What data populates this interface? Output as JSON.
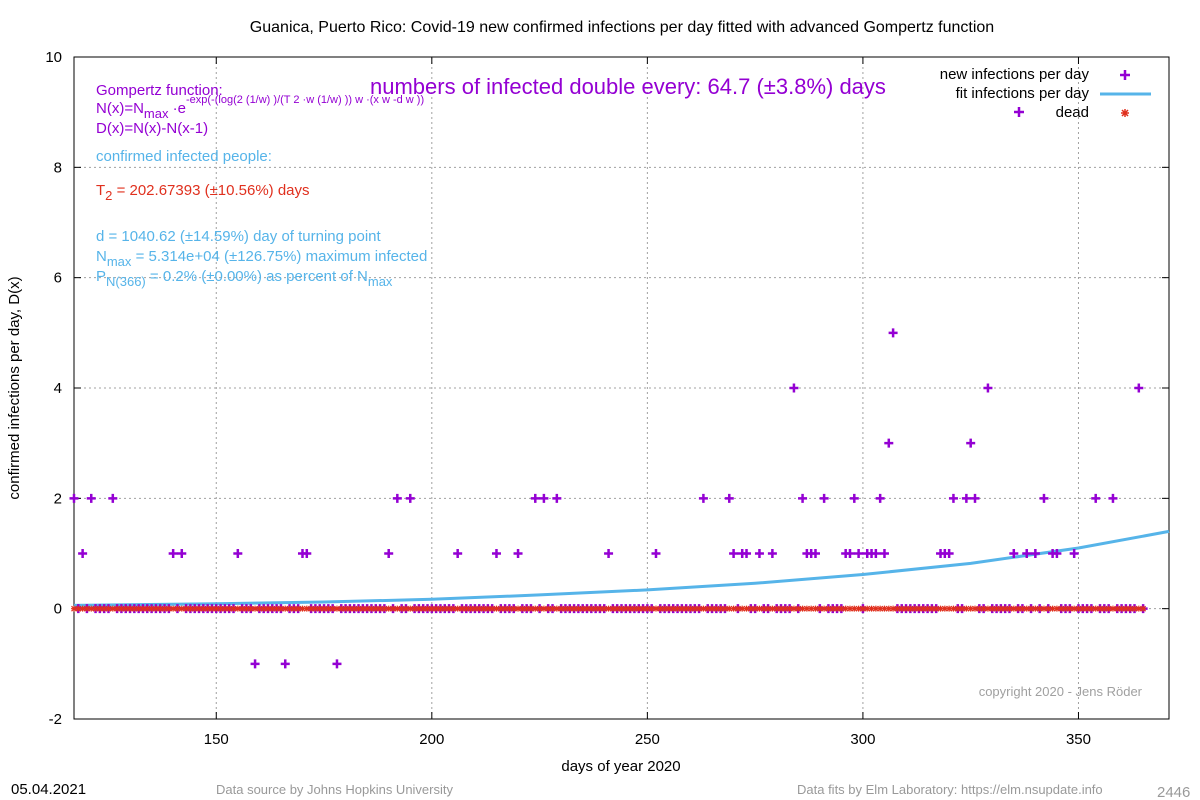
{
  "colors": {
    "infections": "#9400d3",
    "fit": "#56b4e9",
    "dead": "#e0301e",
    "grid": "#a0a0a0",
    "text": "#000000",
    "footer": "#999999",
    "copyright": "#a0a0a0"
  },
  "chart_data": {
    "type": "scatter",
    "title": "Guanica,  Puerto Rico: Covid-19 new confirmed infections per day fitted with advanced Gompertz function",
    "xlabel": "days of year 2020",
    "ylabel": "confirmed infections per day, D(x)",
    "xlim": [
      117,
      371
    ],
    "ylim": [
      -2,
      10
    ],
    "x_ticks": [
      150,
      200,
      250,
      300,
      350
    ],
    "y_ticks": [
      -2,
      0,
      2,
      4,
      6,
      8,
      10
    ],
    "grid": true,
    "legend_position": "top-right",
    "series": [
      {
        "name": "new infections per day",
        "kind": "points",
        "zero_days_from": 117,
        "zero_days_to": 365,
        "points": [
          [
            117,
            2
          ],
          [
            119,
            1
          ],
          [
            121,
            2
          ],
          [
            126,
            2
          ],
          [
            140,
            1
          ],
          [
            142,
            1
          ],
          [
            155,
            1
          ],
          [
            159,
            -1
          ],
          [
            166,
            -1
          ],
          [
            170,
            1
          ],
          [
            171,
            1
          ],
          [
            178,
            -1
          ],
          [
            190,
            1
          ],
          [
            192,
            2
          ],
          [
            195,
            2
          ],
          [
            206,
            1
          ],
          [
            215,
            1
          ],
          [
            220,
            1
          ],
          [
            224,
            2
          ],
          [
            226,
            2
          ],
          [
            229,
            2
          ],
          [
            241,
            1
          ],
          [
            252,
            1
          ],
          [
            263,
            2
          ],
          [
            269,
            2
          ],
          [
            270,
            1
          ],
          [
            272,
            1
          ],
          [
            273,
            1
          ],
          [
            276,
            1
          ],
          [
            279,
            1
          ],
          [
            284,
            4
          ],
          [
            286,
            2
          ],
          [
            287,
            1
          ],
          [
            288,
            1
          ],
          [
            289,
            1
          ],
          [
            291,
            2
          ],
          [
            296,
            1
          ],
          [
            297,
            1
          ],
          [
            298,
            2
          ],
          [
            299,
            1
          ],
          [
            301,
            1
          ],
          [
            302,
            1
          ],
          [
            303,
            1
          ],
          [
            304,
            2
          ],
          [
            305,
            1
          ],
          [
            306,
            3
          ],
          [
            307,
            5
          ],
          [
            318,
            1
          ],
          [
            319,
            1
          ],
          [
            320,
            1
          ],
          [
            321,
            2
          ],
          [
            324,
            2
          ],
          [
            325,
            3
          ],
          [
            326,
            2
          ],
          [
            329,
            4
          ],
          [
            335,
            1
          ],
          [
            338,
            1
          ],
          [
            340,
            1
          ],
          [
            342,
            2
          ],
          [
            344,
            1
          ],
          [
            345,
            1
          ],
          [
            349,
            1
          ],
          [
            354,
            2
          ],
          [
            358,
            2
          ],
          [
            364,
            4
          ]
        ]
      },
      {
        "name": "fit infections per day",
        "kind": "line",
        "points": [
          [
            117,
            0.06
          ],
          [
            150,
            0.09
          ],
          [
            175,
            0.12
          ],
          [
            200,
            0.17
          ],
          [
            225,
            0.25
          ],
          [
            250,
            0.34
          ],
          [
            275,
            0.46
          ],
          [
            300,
            0.62
          ],
          [
            325,
            0.82
          ],
          [
            350,
            1.1
          ],
          [
            371,
            1.4
          ]
        ]
      },
      {
        "name": "dead",
        "kind": "points",
        "zero_days_from": 117,
        "zero_days_to": 365,
        "points": []
      }
    ],
    "annotations": {
      "gompertz_label": "Gompertz function:",
      "formula_n": "N(x)=N",
      "formula_n_sub": "max",
      "formula_n_rest": " ·e",
      "formula_exp": "-exp(-(log(2 (1/w) )/(T 2 ·w (1/w) )) w ·(x w -d w ))",
      "formula_d": "D(x)=N(x)-N(x-1)",
      "headline": "numbers of infected double every: 64.7 (±3.8%) days",
      "confirmed_label": "confirmed infected people:",
      "t2_prefix": "T",
      "t2_sub": "2",
      "t2_rest": " = 202.67393 (±10.56%) days",
      "d_line": "d = 1040.62 (±14.59%) day of turning point",
      "nmax_prefix": "N",
      "nmax_sub": "max",
      "nmax_rest": " = 5.314e+04 (±126.75%) maximum infected",
      "p_prefix": "P",
      "p_sub": "N(366)",
      "p_rest": " = 0.2% (±0.00%) as percent of N",
      "p_sub2": "max",
      "copyright": "copyright 2020 - Jens Röder"
    }
  },
  "footer": {
    "date": "05.04.2021",
    "source": "Data source by Johns Hopkins University",
    "fits": "Data fits by Elm Laboratory: https://elm.nsupdate.info",
    "counter": "2446"
  }
}
